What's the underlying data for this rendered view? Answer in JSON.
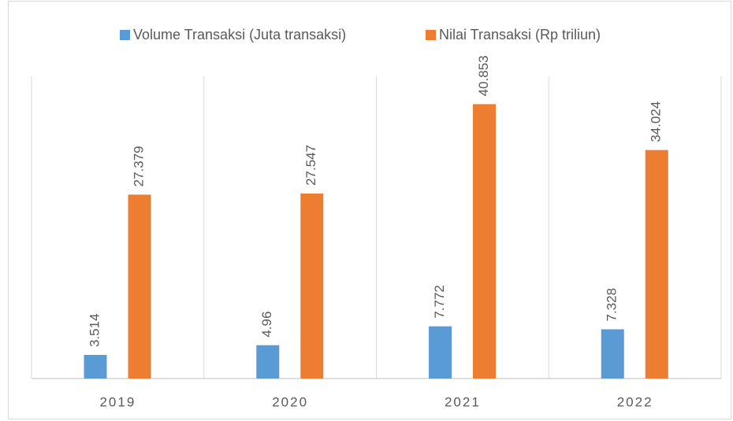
{
  "chart_data": {
    "type": "bar",
    "categories": [
      "2019",
      "2020",
      "2021",
      "2022"
    ],
    "series": [
      {
        "name": "Volume Transaksi (Juta transaksi)",
        "color": "#5b9bd5",
        "values": [
          3.514,
          4.96,
          7.772,
          7.328
        ]
      },
      {
        "name": "Nilai Transaksi (Rp triliun)",
        "color": "#ed7d31",
        "values": [
          27.379,
          27.547,
          40.853,
          34.024
        ]
      }
    ],
    "ylim": [
      0,
      45
    ],
    "legend": "top"
  }
}
